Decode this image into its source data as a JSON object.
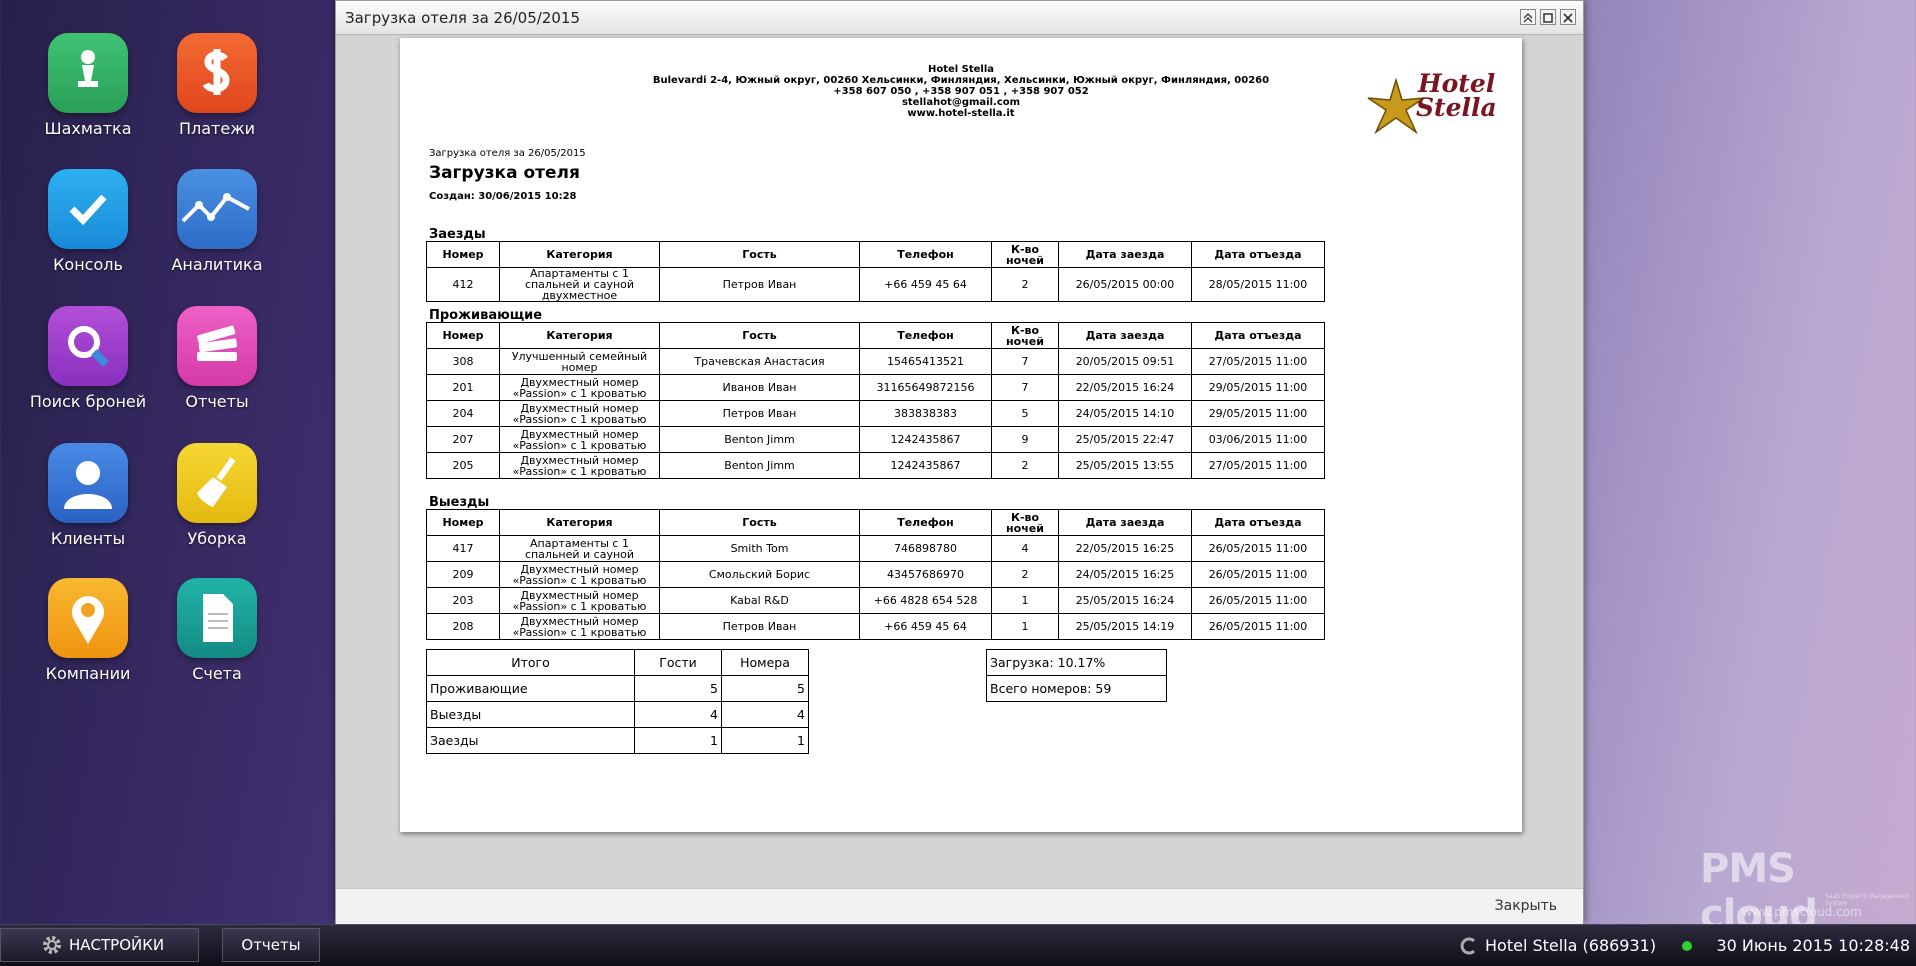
{
  "desktop": {
    "icons": [
      {
        "label": "Шахматка"
      },
      {
        "label": "Платежи"
      },
      {
        "label": "Консоль"
      },
      {
        "label": "Аналитика"
      },
      {
        "label": "Поиск броней"
      },
      {
        "label": "Отчеты"
      },
      {
        "label": "Клиенты"
      },
      {
        "label": "Уборка"
      },
      {
        "label": "Компании"
      },
      {
        "label": "Счета"
      }
    ]
  },
  "window": {
    "title": "Загрузка отеля за 26/05/2015",
    "close_button": "Закрыть"
  },
  "report": {
    "hotel_name": "Hotel Stella",
    "address": "Bulevardi 2-4, Южный округ, 00260 Хельсинки, Финляндия, Хельсинки, Южный округ, Финляндия, 00260",
    "phones": "+358 607 050 , +358 907 051 , +358 907 052",
    "email": "stellahot@gmail.com",
    "website": "www.hotel-stella.it",
    "logo": [
      "Hotel",
      "Stella"
    ],
    "subtitle": "Загрузка отеля за 26/05/2015",
    "heading": "Загрузка отеля",
    "created": "Создан: 30/06/2015 10:28",
    "columns": [
      "Номер",
      "Категория",
      "Гость",
      "Телефон",
      "К-во ночей",
      "Дата заезда",
      "Дата отъезда"
    ],
    "sections": [
      {
        "title": "Заезды",
        "rows": [
          [
            412,
            "Апартаменты с 1 спальней и сауной двухместное",
            "Петров Иван",
            "+66 459 45 64",
            2,
            "26/05/2015 00:00",
            "28/05/2015 11:00"
          ]
        ]
      },
      {
        "title": "Проживающие",
        "rows": [
          [
            308,
            "Улучшенный семейный номер",
            "Трачевская Анастасия",
            "15465413521",
            7,
            "20/05/2015 09:51",
            "27/05/2015 11:00"
          ],
          [
            201,
            "Двухместный номер «Passion» с 1 кроватью",
            "Иванов Иван",
            "31165649872156",
            7,
            "22/05/2015 16:24",
            "29/05/2015 11:00"
          ],
          [
            204,
            "Двухместный номер «Passion» с 1 кроватью",
            "Петров Иван",
            "383838383",
            5,
            "24/05/2015 14:10",
            "29/05/2015 11:00"
          ],
          [
            207,
            "Двухместный номер «Passion» с 1 кроватью",
            "Benton Jimm",
            "1242435867",
            9,
            "25/05/2015 22:47",
            "03/06/2015 11:00"
          ],
          [
            205,
            "Двухместный номер «Passion» с 1 кроватью",
            "Benton Jimm",
            "1242435867",
            2,
            "25/05/2015 13:55",
            "27/05/2015 11:00"
          ]
        ]
      },
      {
        "title": "Выезды",
        "rows": [
          [
            417,
            "Апартаменты с 1 спальней и сауной",
            "Smith Tom",
            "746898780",
            4,
            "22/05/2015 16:25",
            "26/05/2015 11:00"
          ],
          [
            209,
            "Двухместный номер «Passion» с 1 кроватью",
            "Смольский Борис",
            "43457686970",
            2,
            "24/05/2015 16:25",
            "26/05/2015 11:00"
          ],
          [
            203,
            "Двухместный номер «Passion» с 1 кроватью",
            "Kabal R&D",
            "+66 4828 654 528",
            1,
            "25/05/2015 16:24",
            "26/05/2015 11:00"
          ],
          [
            208,
            "Двухместный номер «Passion» с 1 кроватью",
            "Петров Иван",
            "+66 459 45 64",
            1,
            "25/05/2015 14:19",
            "26/05/2015 11:00"
          ]
        ]
      }
    ],
    "summary": {
      "columns": [
        "Итого",
        "Гости",
        "Номера"
      ],
      "rows": [
        [
          "Проживающие",
          5,
          5
        ],
        [
          "Выезды",
          4,
          4
        ],
        [
          "Заезды",
          1,
          1
        ]
      ]
    },
    "stats": [
      "Загрузка: 10.17%",
      "Всего номеров: 59"
    ]
  },
  "taskbar": {
    "settings": "НАСТРОЙКИ",
    "tabs": [
      "Отчеты"
    ],
    "hotel": "Hotel Stella (686931)",
    "datetime": "30 Июнь 2015 10:28:48"
  },
  "watermark": {
    "brand": "PMS cloud",
    "tagline": "SaaS Property Management System",
    "url": "www.pmscloud.com"
  }
}
